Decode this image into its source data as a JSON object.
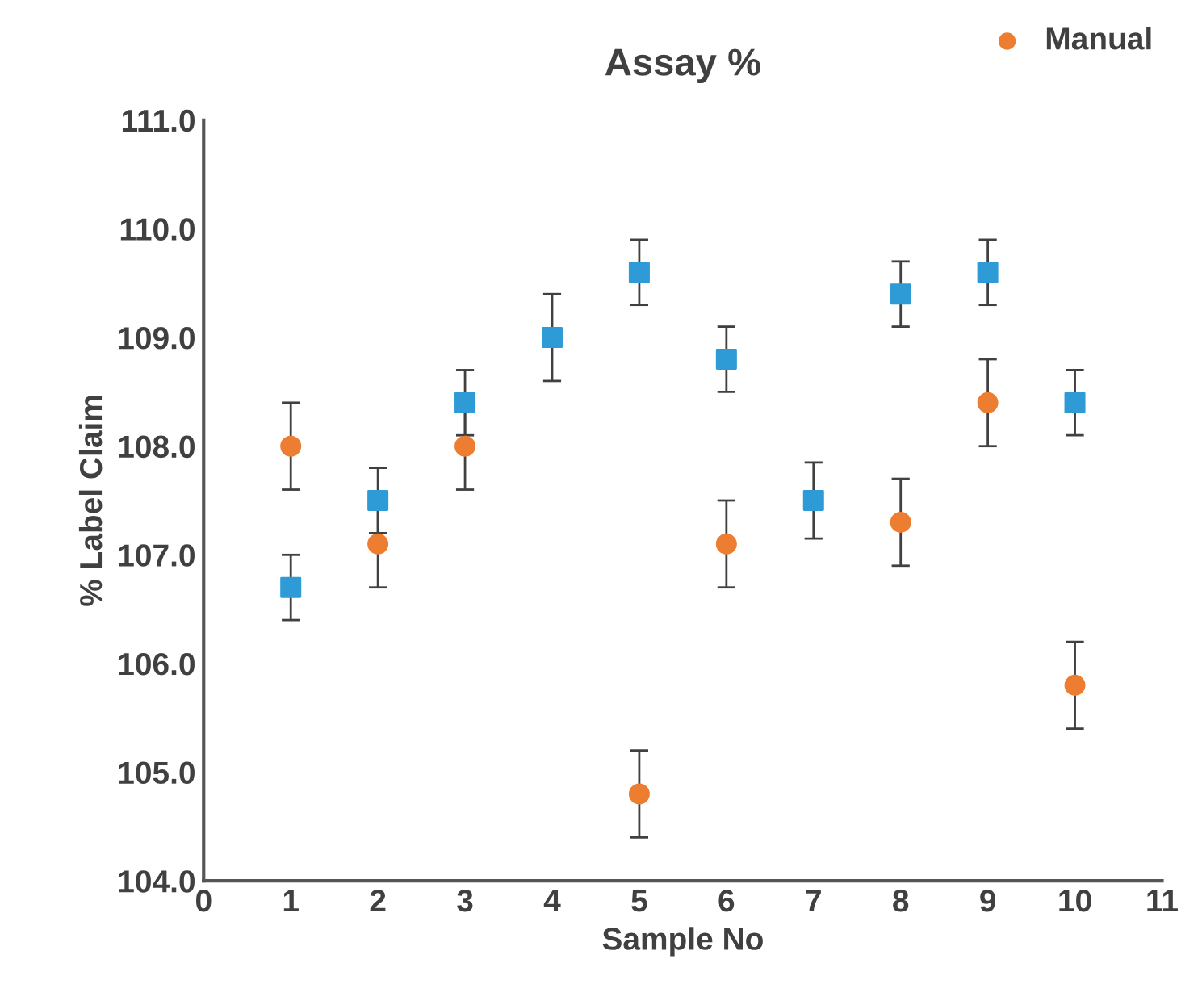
{
  "chart_data": {
    "type": "scatter",
    "title": "Assay %",
    "xlabel": "Sample No",
    "ylabel": "% Label Claim",
    "x": [
      1,
      2,
      3,
      4,
      5,
      6,
      7,
      8,
      9,
      10
    ],
    "series": [
      {
        "name": "Manual",
        "color": "#ed7d31",
        "marker": "circle",
        "values": [
          108.0,
          107.1,
          108.0,
          null,
          104.8,
          107.1,
          null,
          107.3,
          108.4,
          105.8
        ],
        "errors": [
          0.4,
          0.4,
          0.4,
          null,
          0.4,
          0.4,
          null,
          0.4,
          0.4,
          0.4
        ]
      },
      {
        "color": "#2e9bd6",
        "marker": "square",
        "values": [
          106.7,
          107.5,
          108.4,
          109.0,
          109.6,
          108.8,
          107.5,
          109.4,
          109.6,
          108.4
        ],
        "errors": [
          0.3,
          0.3,
          0.3,
          0.4,
          0.3,
          0.3,
          0.35,
          0.3,
          0.3,
          0.3
        ]
      }
    ],
    "xlim": [
      0,
      11
    ],
    "xticks": [
      0,
      1,
      2,
      3,
      4,
      5,
      6,
      7,
      8,
      9,
      10,
      11
    ],
    "ylim": [
      104,
      111
    ],
    "yticks": [
      {
        "value": 104,
        "label": "104.0"
      },
      {
        "value": 105,
        "label": "105.0"
      },
      {
        "value": 106,
        "label": "106.0"
      },
      {
        "value": 107,
        "label": "107.0"
      },
      {
        "value": 108,
        "label": "108.0"
      },
      {
        "value": 109,
        "label": "109.0"
      },
      {
        "value": 110,
        "label": "110.0"
      },
      {
        "value": 111,
        "label": "111.0"
      }
    ],
    "grid": false,
    "legend": "top right"
  }
}
